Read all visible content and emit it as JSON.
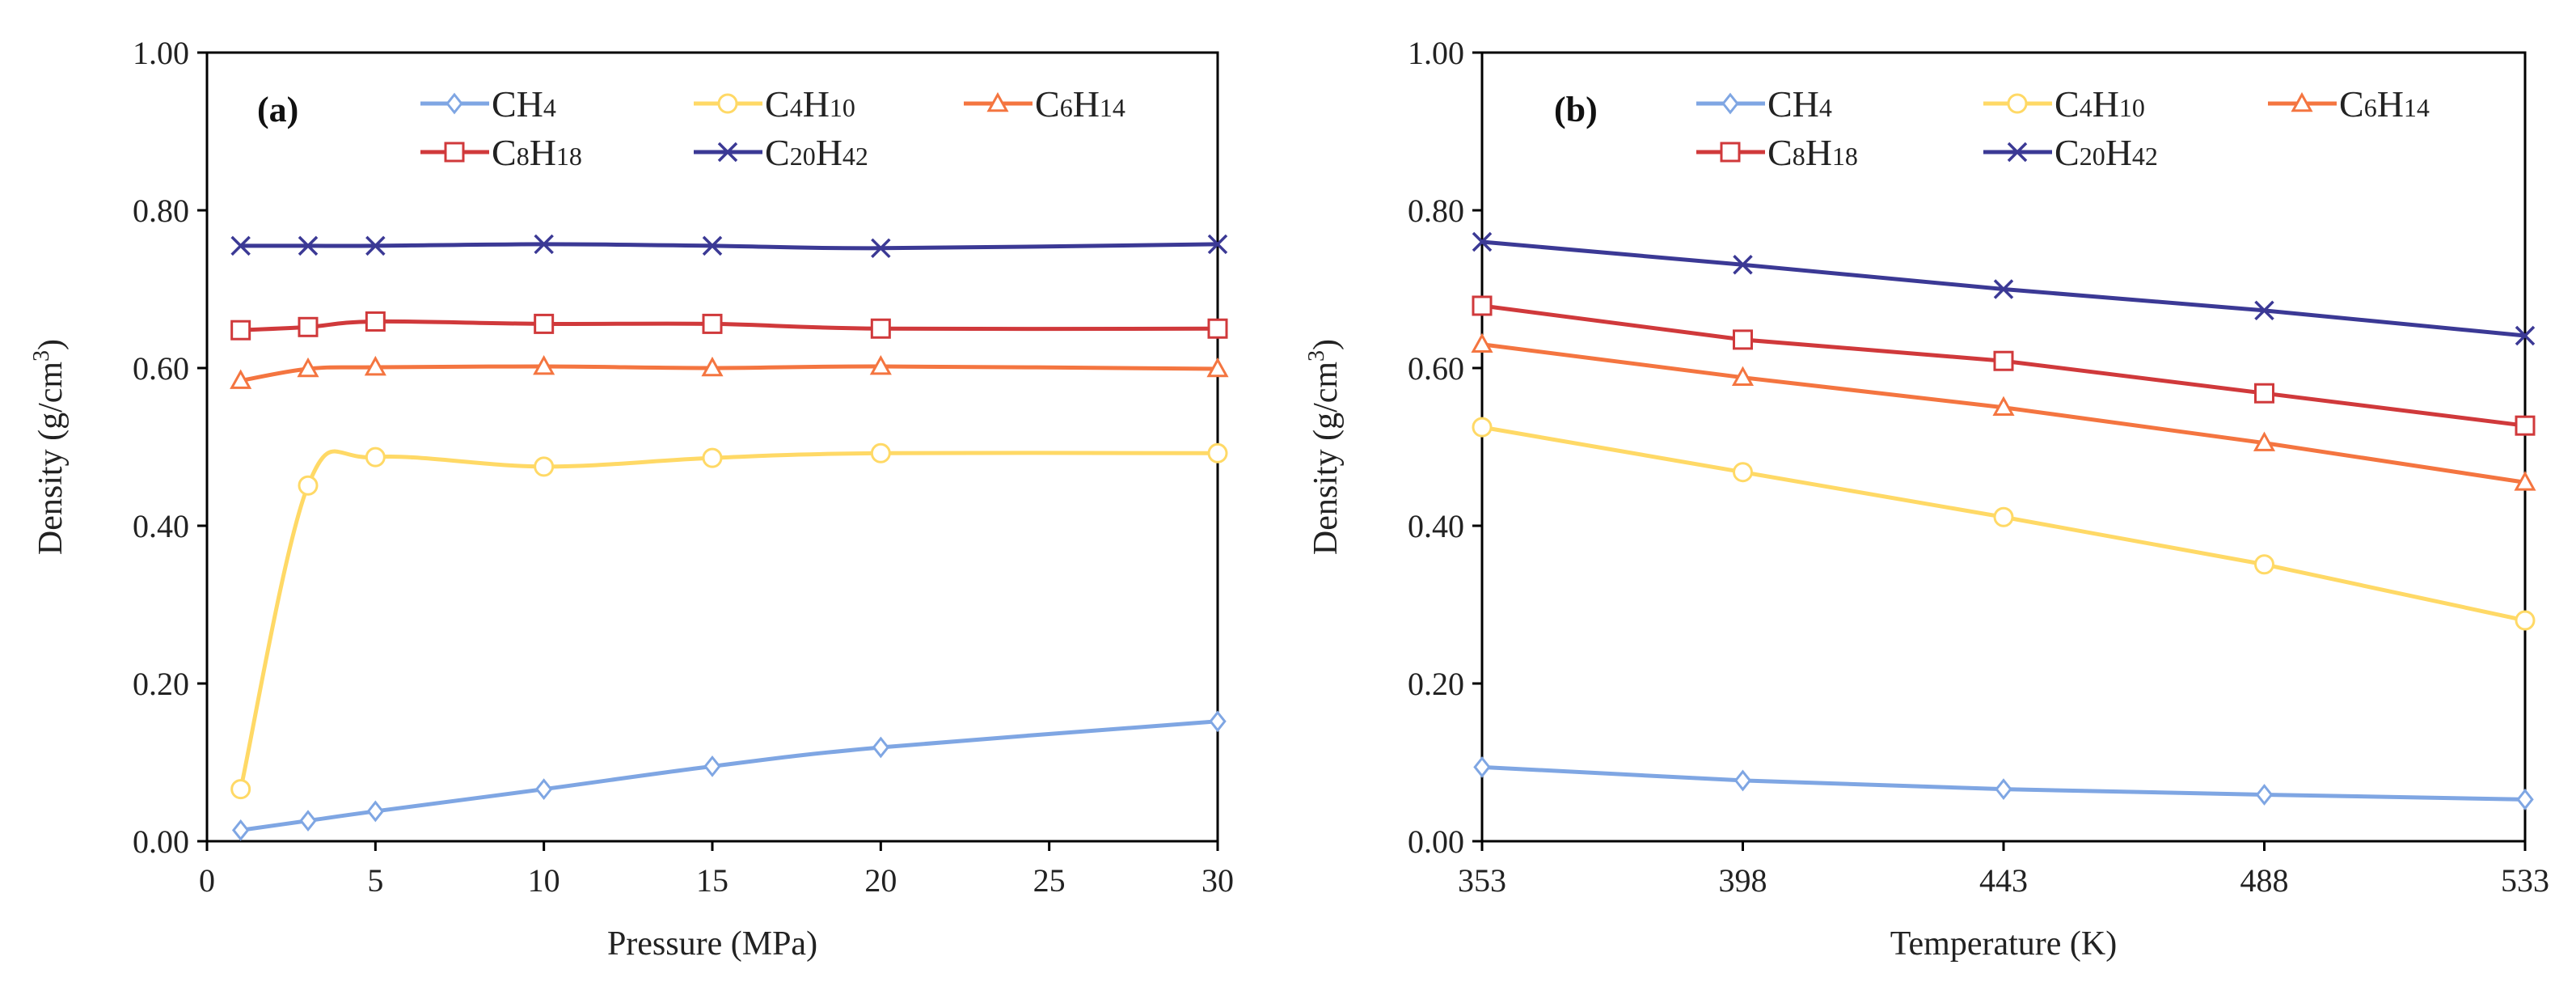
{
  "chart_data": [
    {
      "type": "line",
      "panel_label": "(a)",
      "xlabel": "Pressure (MPa)",
      "ylabel": "Density (g/cm3)",
      "xlim": [
        0,
        30
      ],
      "ylim": [
        0,
        1.0
      ],
      "xticks": [
        "0",
        "5",
        "10",
        "15",
        "20",
        "25",
        "30"
      ],
      "yticks": [
        "0.00",
        "0.20",
        "0.40",
        "0.60",
        "0.80",
        "1.00"
      ],
      "smooth": true,
      "legend_position": "top",
      "x": [
        1,
        3,
        5,
        10,
        15,
        20,
        30
      ],
      "series": [
        {
          "name": "CH4",
          "marker": "diamond",
          "color": "#7FA6E3",
          "values": [
            0.014,
            0.026,
            0.038,
            0.066,
            0.095,
            0.119,
            0.152
          ]
        },
        {
          "name": "C4H10",
          "marker": "circle",
          "color": "#FFD966",
          "values": [
            0.066,
            0.451,
            0.487,
            0.475,
            0.486,
            0.492,
            0.492
          ]
        },
        {
          "name": "C6H14",
          "marker": "triangle",
          "color": "#F47540",
          "values": [
            0.584,
            0.599,
            0.601,
            0.602,
            0.6,
            0.602,
            0.599
          ]
        },
        {
          "name": "C8H18",
          "marker": "square",
          "color": "#D0393B",
          "values": [
            0.648,
            0.652,
            0.659,
            0.656,
            0.656,
            0.65,
            0.65
          ]
        },
        {
          "name": "C20H42",
          "marker": "x",
          "color": "#3B3995",
          "values": [
            0.755,
            0.755,
            0.755,
            0.757,
            0.755,
            0.752,
            0.757
          ]
        }
      ]
    },
    {
      "type": "line",
      "panel_label": "(b)",
      "xlabel": "Temperature (K)",
      "ylabel": "Density (g/cm3)",
      "xlim": [
        353,
        533
      ],
      "ylim": [
        0,
        1.0
      ],
      "xticks": [
        "353",
        "398",
        "443",
        "488",
        "533"
      ],
      "yticks": [
        "0.00",
        "0.20",
        "0.40",
        "0.60",
        "0.80",
        "1.00"
      ],
      "smooth": false,
      "legend_position": "top",
      "x": [
        353,
        398,
        443,
        488,
        533
      ],
      "series": [
        {
          "name": "CH4",
          "marker": "diamond",
          "color": "#7FA6E3",
          "values": [
            0.094,
            0.077,
            0.066,
            0.059,
            0.053
          ]
        },
        {
          "name": "C4H10",
          "marker": "circle",
          "color": "#FFD966",
          "values": [
            0.525,
            0.468,
            0.411,
            0.351,
            0.28
          ]
        },
        {
          "name": "C6H14",
          "marker": "triangle",
          "color": "#F47540",
          "values": [
            0.63,
            0.588,
            0.55,
            0.505,
            0.455
          ]
        },
        {
          "name": "C8H18",
          "marker": "square",
          "color": "#D0393B",
          "values": [
            0.679,
            0.636,
            0.609,
            0.568,
            0.527
          ]
        },
        {
          "name": "C20H42",
          "marker": "x",
          "color": "#3B3995",
          "values": [
            0.76,
            0.731,
            0.7,
            0.673,
            0.641
          ]
        }
      ]
    }
  ]
}
